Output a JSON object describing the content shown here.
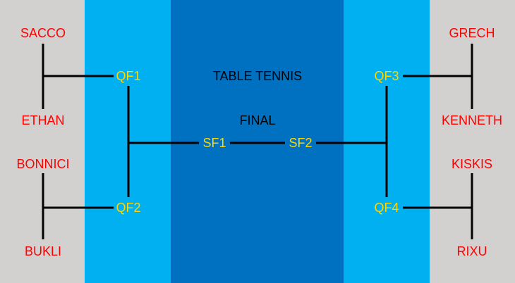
{
  "colors": {
    "grey": "#d3d0d0",
    "light_blue": "#00b0f0",
    "center_blue": "#0070c0",
    "player_red": "#ff0000",
    "match_yellow": "#ffd700",
    "line": "#000000",
    "title": "#000000"
  },
  "title": {
    "line1": "TABLE TENNIS",
    "line2": "FINAL"
  },
  "players": {
    "left": [
      "SACCO",
      "ETHAN",
      "BONNICI",
      "BUKLI"
    ],
    "right": [
      "GRECH",
      "KENNETH",
      "KISKIS",
      "RIXU"
    ]
  },
  "matches": {
    "qf1": "QF1",
    "qf2": "QF2",
    "qf3": "QF3",
    "qf4": "QF4",
    "sf1": "SF1",
    "sf2": "SF2"
  }
}
